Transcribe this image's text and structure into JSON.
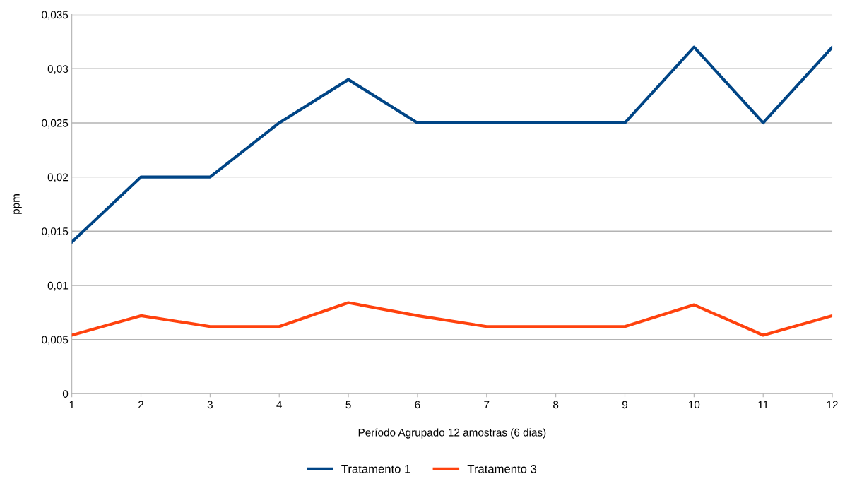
{
  "chart_data": {
    "type": "line",
    "xlabel": "Período Agrupado 12 amostras (6 dias)",
    "ylabel": "ppm",
    "categories": [
      "1",
      "2",
      "3",
      "4",
      "5",
      "6",
      "7",
      "8",
      "9",
      "10",
      "11",
      "12"
    ],
    "series": [
      {
        "name": "Tratamento 1",
        "color": "#004586",
        "values": [
          0.014,
          0.02,
          0.02,
          0.025,
          0.029,
          0.025,
          0.025,
          0.025,
          0.025,
          0.032,
          0.025,
          0.032
        ]
      },
      {
        "name": "Tratamento 3",
        "color": "#ff420e",
        "values": [
          0.0054,
          0.0072,
          0.0062,
          0.0062,
          0.0084,
          0.0072,
          0.0062,
          0.0062,
          0.0062,
          0.0082,
          0.0054,
          0.0072
        ]
      }
    ],
    "ylim": [
      0,
      0.035
    ],
    "yticks": [
      0,
      {
        "value": 0.005,
        "label": "0,005"
      },
      {
        "value": 0.01,
        "label": "0,01"
      },
      {
        "value": 0.015,
        "label": "0,015"
      },
      {
        "value": 0.02,
        "label": "0,02"
      },
      {
        "value": 0.025,
        "label": "0,025"
      },
      {
        "value": 0.03,
        "label": "0,03"
      },
      {
        "value": 0.035,
        "label": "0,035"
      }
    ],
    "grid": "y",
    "legend": "bottom",
    "marker": "none",
    "line_style": "solid"
  }
}
